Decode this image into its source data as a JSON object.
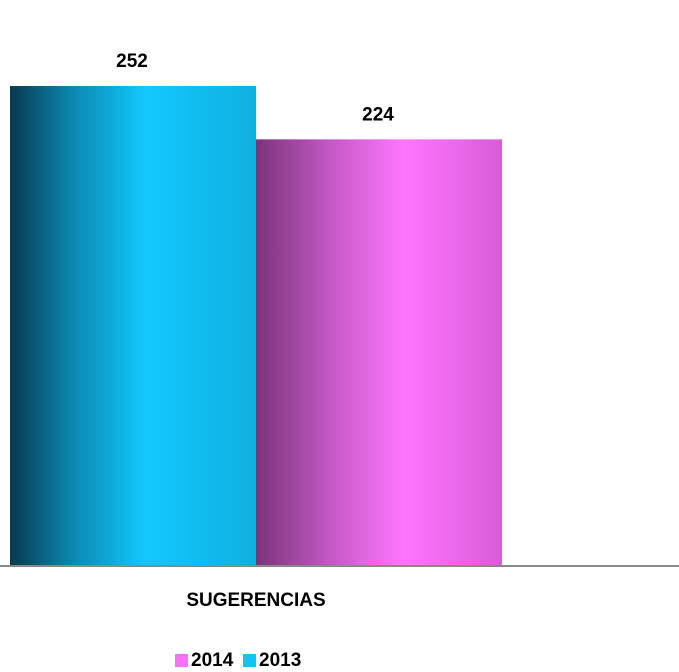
{
  "chart_data": {
    "type": "bar",
    "categories": [
      "SUGERENCIAS"
    ],
    "series": [
      {
        "name": "2013",
        "color": "#12c3f5",
        "values": [
          252
        ]
      },
      {
        "name": "2014",
        "color": "#fb70fb",
        "values": [
          224
        ]
      }
    ],
    "ylim": [
      0,
      300
    ],
    "grid": false,
    "legend": "bottom"
  }
}
